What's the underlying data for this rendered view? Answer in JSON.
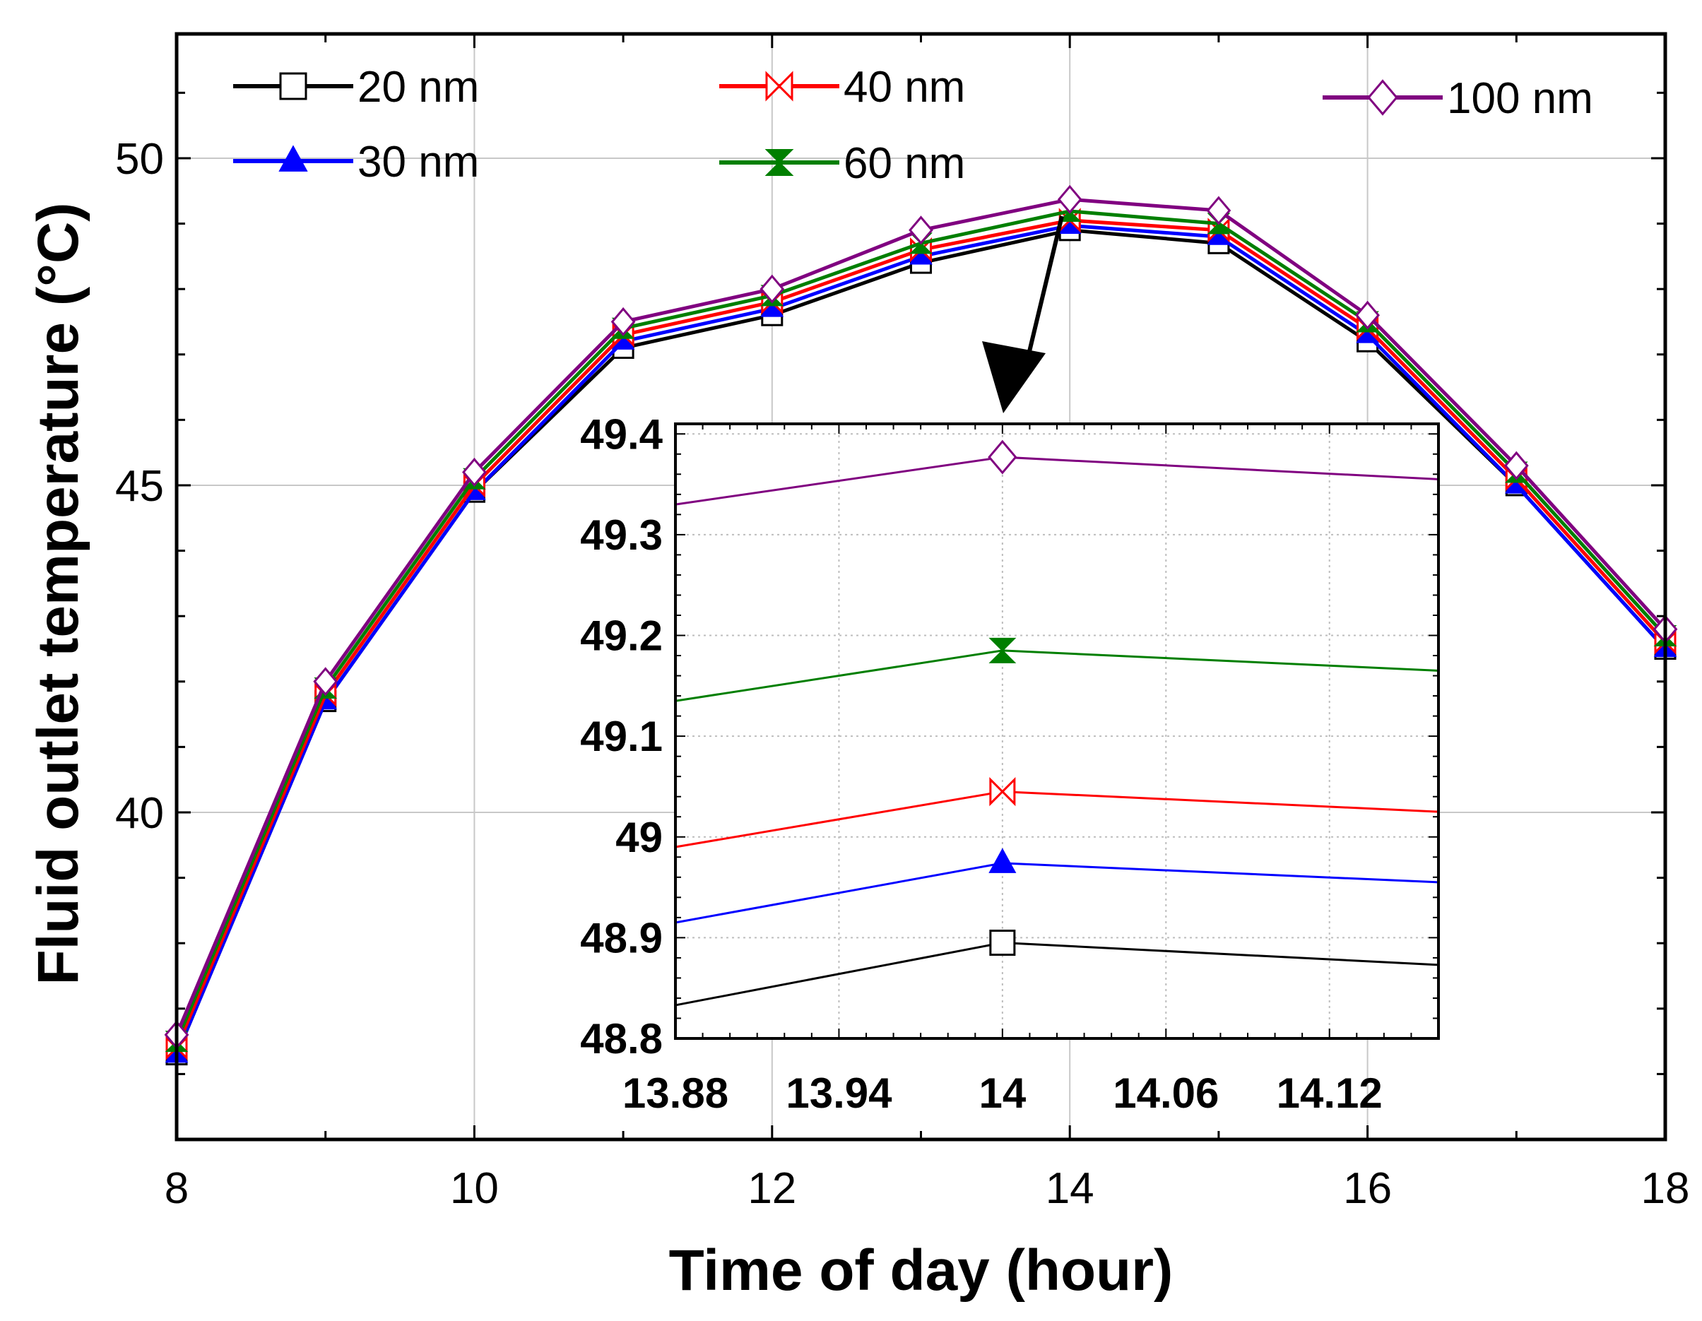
{
  "chart_data": [
    {
      "type": "line",
      "xlabel": "Time of day (hour)",
      "ylabel": "Fluid outlet temperature (°C)",
      "xlim": [
        8,
        18
      ],
      "ylim": [
        35,
        51.9
      ],
      "xticks": [
        8,
        10,
        12,
        14,
        16,
        18
      ],
      "yticks": [
        40,
        45,
        50
      ],
      "x": [
        8,
        9,
        10,
        11,
        12,
        13,
        14,
        15,
        16,
        17,
        18
      ],
      "grid": true,
      "legend_position": "top",
      "series": [
        {
          "name": "20 nm",
          "color": "#000000",
          "marker": "square",
          "values": [
            36.3,
            41.7,
            44.9,
            47.1,
            47.6,
            48.4,
            48.9,
            48.7,
            47.2,
            45.0,
            42.5
          ]
        },
        {
          "name": "30 nm",
          "color": "#0000ff",
          "marker": "triangle-up",
          "values": [
            36.3,
            41.7,
            44.9,
            47.2,
            47.7,
            48.5,
            48.97,
            48.8,
            47.3,
            45.0,
            42.5
          ]
        },
        {
          "name": "40 nm",
          "color": "#ff0000",
          "marker": "bowtie",
          "values": [
            36.4,
            41.8,
            45.0,
            47.3,
            47.8,
            48.6,
            49.05,
            48.9,
            47.4,
            45.1,
            42.6
          ]
        },
        {
          "name": "60 nm",
          "color": "#007f00",
          "marker": "hourglass",
          "values": [
            36.5,
            41.9,
            45.1,
            47.4,
            47.9,
            48.7,
            49.19,
            49.0,
            47.5,
            45.2,
            42.7
          ]
        },
        {
          "name": "100 nm",
          "color": "#800080",
          "marker": "diamond",
          "values": [
            36.6,
            42.0,
            45.2,
            47.5,
            48.0,
            48.9,
            49.37,
            49.2,
            47.6,
            45.3,
            42.8
          ]
        }
      ]
    },
    {
      "type": "line",
      "xlim": [
        13.88,
        14.16
      ],
      "ylim": [
        48.8,
        49.41
      ],
      "xticks": [
        13.88,
        13.94,
        14,
        14.06,
        14.12
      ],
      "yticks": [
        48.8,
        48.9,
        49,
        49.1,
        49.2,
        49.3,
        49.4
      ],
      "x": [
        13.88,
        14,
        14.16
      ],
      "grid": true,
      "series": [
        {
          "name": "20 nm",
          "color": "#000000",
          "marker": "square",
          "values": [
            48.833,
            48.895,
            48.873
          ]
        },
        {
          "name": "30 nm",
          "color": "#0000ff",
          "marker": "triangle-up",
          "values": [
            48.915,
            48.974,
            48.955
          ]
        },
        {
          "name": "40 nm",
          "color": "#ff0000",
          "marker": "bowtie",
          "values": [
            48.99,
            49.045,
            49.025
          ]
        },
        {
          "name": "60 nm",
          "color": "#007f00",
          "marker": "hourglass",
          "values": [
            49.135,
            49.185,
            49.165
          ]
        },
        {
          "name": "100 nm",
          "color": "#800080",
          "marker": "diamond",
          "values": [
            49.33,
            49.377,
            49.355
          ]
        }
      ]
    }
  ]
}
